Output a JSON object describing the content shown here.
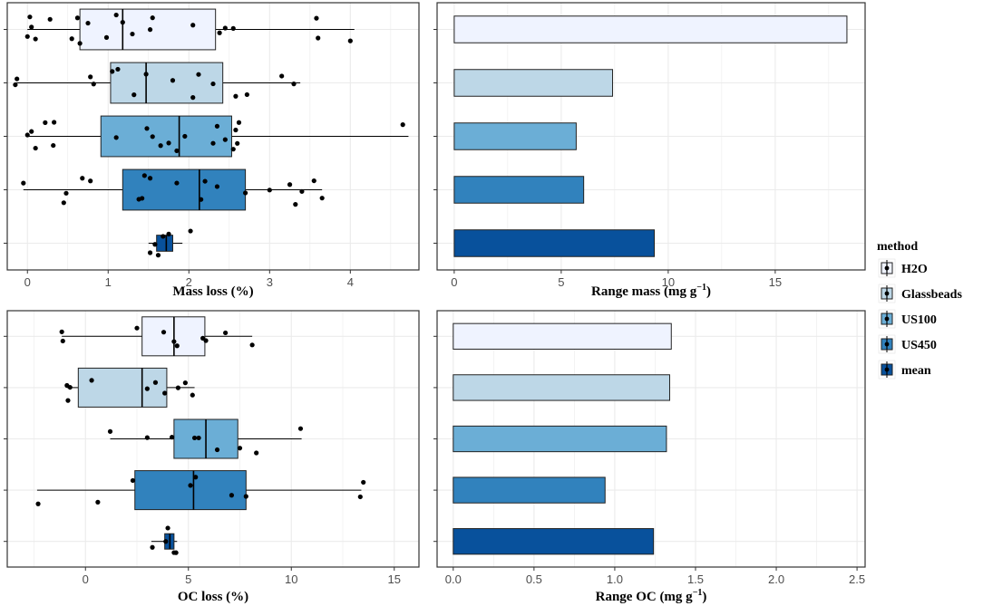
{
  "colors": {
    "H2O": "#eff3ff",
    "Glassbeads": "#bdd7e7",
    "US100": "#6baed6",
    "US450": "#3182bd",
    "mean": "#08519c",
    "grid": "#ebebeb",
    "panel_border": "#333333",
    "point": "#000000"
  },
  "legend": {
    "title": "method",
    "items": [
      "H2O",
      "Glassbeads",
      "US100",
      "US450",
      "mean"
    ]
  },
  "chart_data": [
    {
      "id": "mass_loss",
      "type": "box",
      "orientation": "horizontal",
      "xlabel": "Mass loss (%)",
      "xlim": [
        -0.25,
        4.85
      ],
      "xticks": [
        0,
        1,
        2,
        3,
        4
      ],
      "xtick_labels": [
        "0",
        "1",
        "2",
        "3",
        "4"
      ],
      "groups": [
        {
          "method": "H2O",
          "min": 0.0,
          "q1": 0.65,
          "median": 1.18,
          "q3": 2.33,
          "max": 4.05,
          "points": [
            0.0,
            0.03,
            0.05,
            0.1,
            0.28,
            0.55,
            0.62,
            0.65,
            0.75,
            0.98,
            1.1,
            1.18,
            1.3,
            1.52,
            1.55,
            2.05,
            2.38,
            2.45,
            2.55,
            3.58,
            3.6,
            4.0
          ]
        },
        {
          "method": "Glassbeads",
          "min": -0.15,
          "q1": 1.03,
          "median": 1.47,
          "q3": 2.42,
          "max": 3.38,
          "points": [
            -0.15,
            -0.13,
            0.78,
            0.82,
            1.05,
            1.12,
            1.32,
            1.47,
            1.8,
            2.05,
            2.12,
            2.3,
            2.58,
            2.72,
            3.15,
            3.3
          ]
        },
        {
          "method": "US100",
          "min": 0.0,
          "q1": 0.91,
          "median": 1.88,
          "q3": 2.53,
          "max": 4.72,
          "points": [
            0.0,
            0.05,
            0.1,
            0.22,
            0.32,
            0.33,
            1.1,
            1.48,
            1.55,
            1.65,
            1.75,
            1.85,
            1.95,
            2.3,
            2.35,
            2.45,
            2.55,
            2.58,
            2.6,
            2.62,
            4.65
          ]
        },
        {
          "method": "US450",
          "min": -0.05,
          "q1": 1.18,
          "median": 2.13,
          "q3": 2.7,
          "max": 3.65,
          "points": [
            -0.05,
            0.45,
            0.48,
            0.68,
            0.78,
            1.38,
            1.42,
            1.45,
            1.52,
            1.85,
            2.15,
            2.2,
            2.35,
            2.7,
            3.0,
            3.25,
            3.32,
            3.4,
            3.55,
            3.65
          ]
        },
        {
          "method": "mean",
          "min": 1.5,
          "q1": 1.6,
          "median": 1.72,
          "q3": 1.8,
          "max": 1.92,
          "points": [
            1.52,
            1.58,
            1.62,
            1.68,
            1.75,
            2.02
          ]
        }
      ]
    },
    {
      "id": "range_mass",
      "type": "bar",
      "orientation": "horizontal",
      "xlabel": "Range mass (mg g",
      "xlabel_sup": "−1",
      "xlabel_tail": ")",
      "xlim": [
        -0.8,
        19.2
      ],
      "xticks": [
        0,
        5,
        10,
        15
      ],
      "xtick_labels": [
        "0",
        "5",
        "10",
        "15"
      ],
      "categories": [
        "H2O",
        "Glassbeads",
        "US100",
        "US450",
        "mean"
      ],
      "values": [
        18.35,
        7.4,
        5.7,
        6.05,
        9.35
      ]
    },
    {
      "id": "oc_loss",
      "type": "box",
      "orientation": "horizontal",
      "xlabel": "OC loss (%)",
      "xlabel_sup": "",
      "xlim": [
        -3.8,
        16.2
      ],
      "xticks": [
        0,
        5,
        10,
        15
      ],
      "xtick_labels": [
        "0",
        "5",
        "10",
        "15"
      ],
      "groups": [
        {
          "method": "H2O",
          "min": -1.15,
          "q1": 2.75,
          "median": 4.3,
          "q3": 5.8,
          "max": 8.1,
          "points": [
            -1.15,
            -1.1,
            2.5,
            3.8,
            4.3,
            4.45,
            5.7,
            5.85,
            6.8,
            8.1
          ]
        },
        {
          "method": "Glassbeads",
          "min": -0.9,
          "q1": -0.35,
          "median": 2.75,
          "q3": 3.95,
          "max": 5.3,
          "points": [
            -0.9,
            -0.85,
            -0.75,
            0.3,
            3.0,
            3.4,
            3.85,
            4.5,
            4.85,
            5.2
          ]
        },
        {
          "method": "US100",
          "min": 1.2,
          "q1": 4.3,
          "median": 5.85,
          "q3": 7.4,
          "max": 10.5,
          "points": [
            1.2,
            3.0,
            4.2,
            5.3,
            5.5,
            6.4,
            7.5,
            8.3,
            10.45
          ]
        },
        {
          "method": "US450",
          "min": -2.35,
          "q1": 2.4,
          "median": 5.25,
          "q3": 7.8,
          "max": 13.4,
          "points": [
            -2.3,
            0.6,
            2.3,
            5.1,
            5.35,
            7.1,
            7.8,
            13.35,
            13.5
          ]
        },
        {
          "method": "mean",
          "min": 3.2,
          "q1": 3.85,
          "median": 4.1,
          "q3": 4.3,
          "max": 4.45,
          "points": [
            3.25,
            3.9,
            4.0,
            4.3,
            4.4
          ]
        }
      ]
    },
    {
      "id": "range_oc",
      "type": "bar",
      "orientation": "horizontal",
      "xlabel": "Range OC (mg g",
      "xlabel_sup": "−1",
      "xlabel_tail": ")",
      "xlim": [
        -0.1,
        2.55
      ],
      "xticks": [
        0.0,
        0.5,
        1.0,
        1.5,
        2.0,
        2.5
      ],
      "xtick_labels": [
        "0.0",
        "0.5",
        "1.0",
        "1.5",
        "2.0",
        "2.5"
      ],
      "categories": [
        "H2O",
        "Glassbeads",
        "US100",
        "US450",
        "mean"
      ],
      "values": [
        1.35,
        1.34,
        1.32,
        0.94,
        1.24
      ]
    }
  ]
}
